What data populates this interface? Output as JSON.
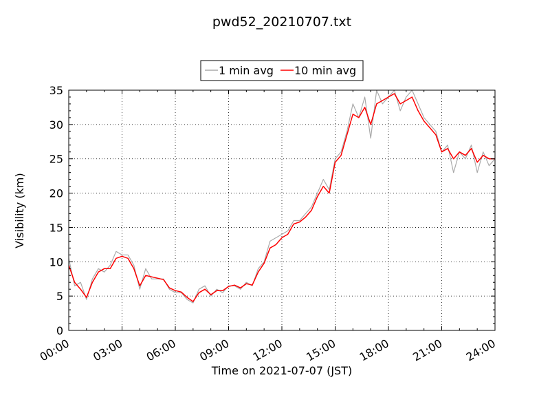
{
  "chart_data": {
    "type": "line",
    "title": "pwd52_20210707.txt",
    "xlabel": "Time on 2021-07-07 (JST)",
    "ylabel": "Visibility (km)",
    "xlim": [
      "00:00",
      "24:00"
    ],
    "ylim": [
      0,
      35
    ],
    "x_ticks": [
      "00:00",
      "03:00",
      "06:00",
      "09:00",
      "12:00",
      "15:00",
      "18:00",
      "21:00",
      "24:00"
    ],
    "y_ticks": [
      "0",
      "5",
      "10",
      "15",
      "20",
      "25",
      "30",
      "35"
    ],
    "grid": true,
    "legend": {
      "placement": "top-center"
    },
    "series": [
      {
        "name": "1 min avg",
        "color": "#aaaaaa",
        "x": [
          "00:00",
          "00:20",
          "00:40",
          "01:00",
          "01:20",
          "01:40",
          "02:00",
          "02:20",
          "02:40",
          "03:00",
          "03:20",
          "03:40",
          "04:00",
          "04:20",
          "04:40",
          "05:00",
          "05:20",
          "05:40",
          "06:00",
          "06:20",
          "06:40",
          "07:00",
          "07:20",
          "07:40",
          "08:00",
          "08:20",
          "08:40",
          "09:00",
          "09:20",
          "09:40",
          "10:00",
          "10:20",
          "10:40",
          "11:00",
          "11:20",
          "11:40",
          "12:00",
          "12:20",
          "12:40",
          "13:00",
          "13:20",
          "13:40",
          "14:00",
          "14:20",
          "14:40",
          "15:00",
          "15:20",
          "15:40",
          "16:00",
          "16:20",
          "16:40",
          "17:00",
          "17:20",
          "17:40",
          "18:00",
          "18:20",
          "18:40",
          "19:00",
          "19:20",
          "19:40",
          "20:00",
          "20:20",
          "20:40",
          "21:00",
          "21:20",
          "21:40",
          "22:00",
          "22:20",
          "22:40",
          "23:00",
          "23:20",
          "23:40",
          "24:00"
        ],
        "values": [
          10.5,
          6.5,
          7,
          4.5,
          7.5,
          9,
          8.5,
          9.5,
          11.5,
          11,
          11,
          9.5,
          6,
          9,
          7.5,
          7.5,
          7.5,
          6,
          5.5,
          5.5,
          4.5,
          4,
          6,
          6.5,
          5,
          6,
          5.5,
          6.5,
          6.5,
          6,
          7,
          6.5,
          9,
          10,
          13,
          13.5,
          14,
          14.5,
          16,
          16,
          17,
          18,
          20,
          22,
          20.5,
          25,
          26,
          29,
          33,
          31,
          34,
          28,
          35,
          33,
          34,
          35,
          32,
          34,
          35,
          33,
          31,
          30,
          29,
          26,
          27,
          23,
          26,
          25,
          27,
          23,
          26,
          24,
          25
        ]
      },
      {
        "name": "10 min avg",
        "color": "#ff0000",
        "x": [
          "00:00",
          "00:20",
          "00:40",
          "01:00",
          "01:20",
          "01:40",
          "02:00",
          "02:20",
          "02:40",
          "03:00",
          "03:20",
          "03:40",
          "04:00",
          "04:20",
          "04:40",
          "05:00",
          "05:20",
          "05:40",
          "06:00",
          "06:20",
          "06:40",
          "07:00",
          "07:20",
          "07:40",
          "08:00",
          "08:20",
          "08:40",
          "09:00",
          "09:20",
          "09:40",
          "10:00",
          "10:20",
          "10:40",
          "11:00",
          "11:20",
          "11:40",
          "12:00",
          "12:20",
          "12:40",
          "13:00",
          "13:20",
          "13:40",
          "14:00",
          "14:20",
          "14:40",
          "15:00",
          "15:20",
          "15:40",
          "16:00",
          "16:20",
          "16:40",
          "17:00",
          "17:20",
          "17:40",
          "18:00",
          "18:20",
          "18:40",
          "19:00",
          "19:20",
          "19:40",
          "20:00",
          "20:20",
          "20:40",
          "21:00",
          "21:20",
          "21:40",
          "22:00",
          "22:20",
          "22:40",
          "23:00",
          "23:20",
          "23:40",
          "24:00"
        ],
        "values": [
          9.5,
          7,
          6,
          4.8,
          7,
          8.5,
          9,
          9,
          10.5,
          10.8,
          10.5,
          9,
          6.5,
          8,
          7.8,
          7.6,
          7.4,
          6.2,
          5.8,
          5.6,
          4.8,
          4.2,
          5.5,
          6,
          5.2,
          5.8,
          5.8,
          6.4,
          6.6,
          6.2,
          6.8,
          6.6,
          8.5,
          9.8,
          12,
          12.5,
          13.5,
          14,
          15.5,
          15.8,
          16.5,
          17.5,
          19.5,
          21,
          20,
          24.5,
          25.5,
          28.5,
          31.5,
          31,
          32.5,
          30,
          33,
          33.5,
          34,
          34.5,
          33,
          33.5,
          34,
          32,
          30.5,
          29.5,
          28.5,
          26,
          26.5,
          25,
          26,
          25.5,
          26.5,
          24.5,
          25.5,
          25,
          25
        ]
      }
    ]
  }
}
